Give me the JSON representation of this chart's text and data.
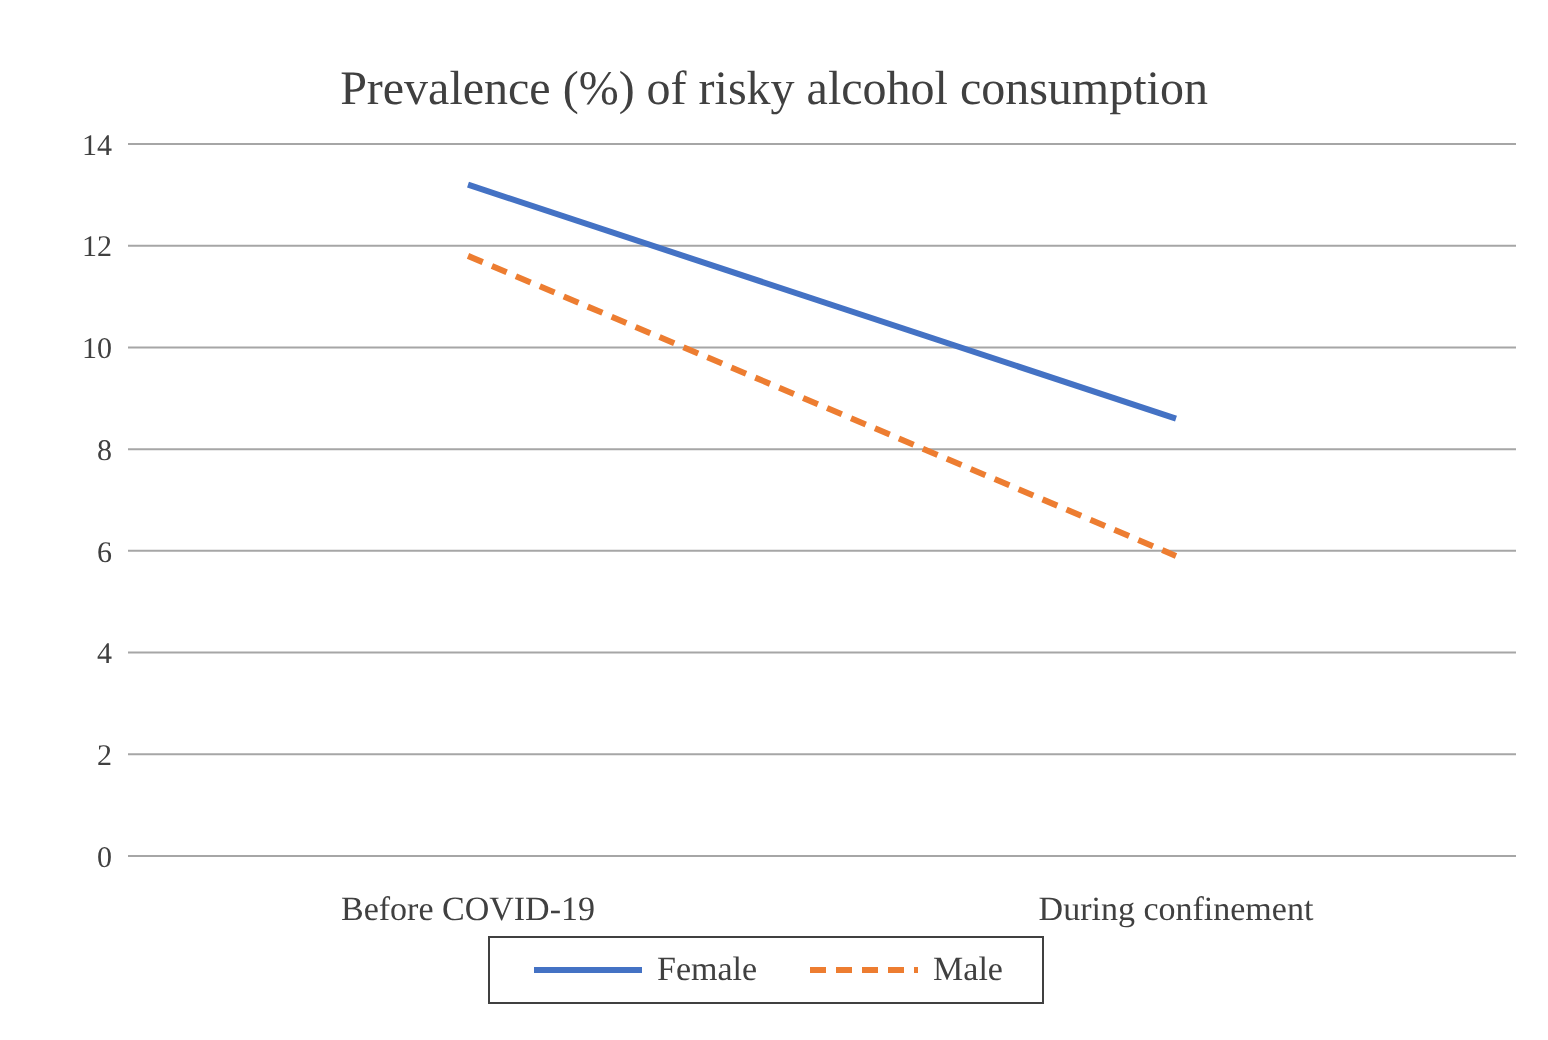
{
  "chart_data": {
    "type": "line",
    "title": "Prevalence (%) of risky alcohol consumption",
    "categories": [
      "Before  COVID-19",
      "During confinement"
    ],
    "series": [
      {
        "name": "Female",
        "color": "#4472c4",
        "values": [
          13.2,
          8.6
        ],
        "line_style": "solid"
      },
      {
        "name": "Male",
        "color": "#ed7d31",
        "values": [
          11.8,
          5.9
        ],
        "line_style": "dashed"
      }
    ],
    "ylim": [
      0,
      14
    ],
    "yticks": [
      0,
      2,
      4,
      6,
      8,
      10,
      12,
      14
    ],
    "grid": "y",
    "legend": "bottom",
    "marker": "none"
  }
}
